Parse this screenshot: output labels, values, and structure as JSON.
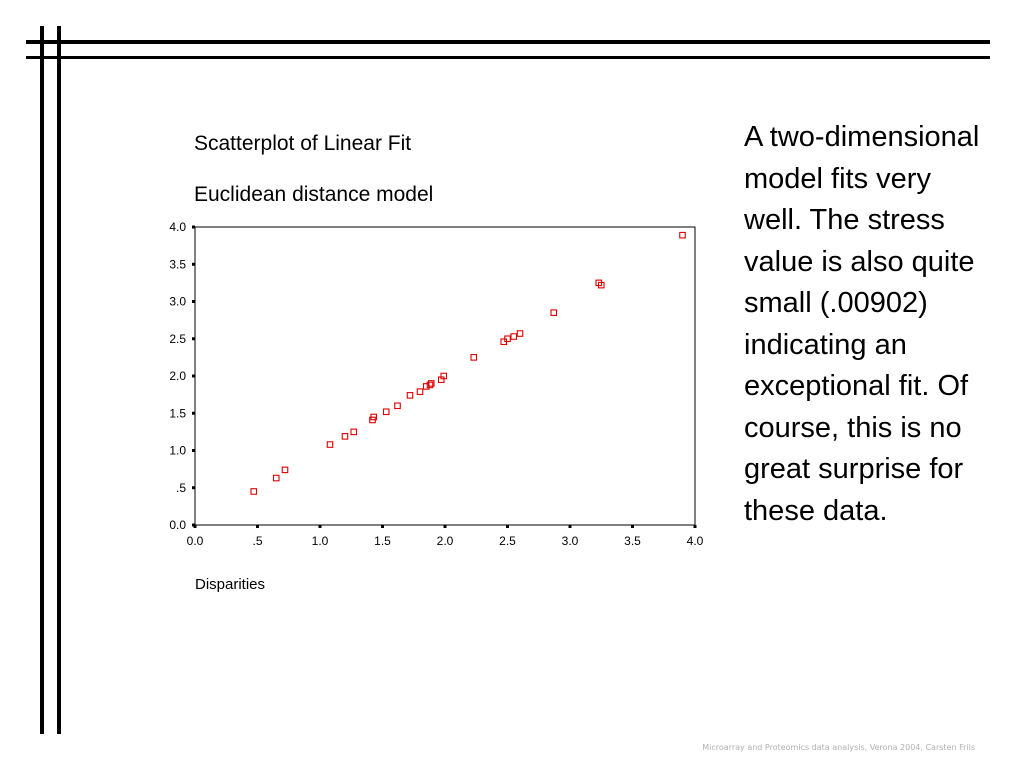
{
  "slide": {
    "body_text": "A two-dimensional model fits very well. The stress value is also quite small (.00902) indicating an exceptional fit. Of course, this is no great surprise for these data.",
    "footer": "Microarray and Proteomics data analysis, Verona 2004, Carsten Friis"
  },
  "chart_data": {
    "type": "scatter",
    "title": "Scatterplot of Linear Fit",
    "subtitle": "Euclidean distance model",
    "xlabel": "Disparities",
    "ylabel": "",
    "xlim": [
      0,
      4
    ],
    "ylim": [
      0,
      4
    ],
    "x_ticks": [
      {
        "value": 0,
        "label": "0.0"
      },
      {
        "value": 0.5,
        "label": ".5"
      },
      {
        "value": 1,
        "label": "1.0"
      },
      {
        "value": 1.5,
        "label": "1.5"
      },
      {
        "value": 2,
        "label": "2.0"
      },
      {
        "value": 2.5,
        "label": "2.5"
      },
      {
        "value": 3,
        "label": "3.0"
      },
      {
        "value": 3.5,
        "label": "3.5"
      },
      {
        "value": 4,
        "label": "4.0"
      }
    ],
    "y_ticks": [
      {
        "value": 0,
        "label": "0.0"
      },
      {
        "value": 0.5,
        "label": ".5"
      },
      {
        "value": 1,
        "label": "1.0"
      },
      {
        "value": 1.5,
        "label": "1.5"
      },
      {
        "value": 2,
        "label": "2.0"
      },
      {
        "value": 2.5,
        "label": "2.5"
      },
      {
        "value": 3,
        "label": "3.0"
      },
      {
        "value": 3.5,
        "label": "3.5"
      },
      {
        "value": 4,
        "label": "4.0"
      }
    ],
    "grid": false,
    "marker": "open-square",
    "marker_color": "#dd0000",
    "series": [
      {
        "x": [
          0.47,
          0.65,
          0.72,
          1.08,
          1.2,
          1.27,
          1.42,
          1.43,
          1.53,
          1.62,
          1.72,
          1.8,
          1.85,
          1.88,
          1.89,
          1.97,
          1.99,
          2.23,
          2.47,
          2.5,
          2.55,
          2.6,
          2.87,
          3.23,
          3.25,
          3.9
        ],
        "y": [
          0.45,
          0.63,
          0.74,
          1.08,
          1.19,
          1.25,
          1.41,
          1.45,
          1.52,
          1.6,
          1.74,
          1.79,
          1.86,
          1.88,
          1.9,
          1.95,
          2.0,
          2.25,
          2.46,
          2.5,
          2.53,
          2.57,
          2.85,
          3.25,
          3.22,
          3.89
        ]
      }
    ]
  }
}
